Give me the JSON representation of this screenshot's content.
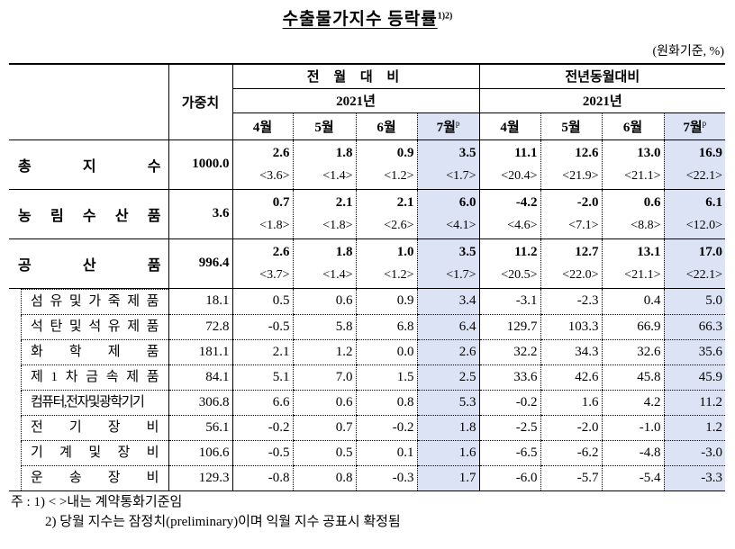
{
  "title": {
    "text": "수출물가지수 등락률",
    "superscript": "1)2)"
  },
  "unit": "(원화기준, %)",
  "header": {
    "weight_label": "가중치",
    "group1": {
      "label": "전 월 대 비",
      "year": "2021년",
      "months": [
        "4월",
        "5월",
        "6월",
        "7월"
      ]
    },
    "group2": {
      "label": "전년동월대비",
      "year": "2021년",
      "months": [
        "4월",
        "5월",
        "6월",
        "7월"
      ]
    },
    "prelim_mark": "p"
  },
  "highlight_color": "#dbe3f5",
  "main_rows": [
    {
      "label_chars": [
        "총",
        "지",
        "수"
      ],
      "weight": "1000.0",
      "mom": [
        "2.6",
        "1.8",
        "0.9",
        "3.5"
      ],
      "mom_contract": [
        "<3.6>",
        "<1.4>",
        "<1.2>",
        "<1.7>"
      ],
      "yoy": [
        "11.1",
        "12.6",
        "13.0",
        "16.9"
      ],
      "yoy_contract": [
        "<20.4>",
        "<21.9>",
        "<21.1>",
        "<22.1>"
      ]
    },
    {
      "label_chars": [
        "농",
        "림",
        "수",
        "산",
        "품"
      ],
      "weight": "3.6",
      "mom": [
        "0.7",
        "2.1",
        "2.1",
        "6.0"
      ],
      "mom_contract": [
        "<1.8>",
        "<1.8>",
        "<2.6>",
        "<4.1>"
      ],
      "yoy": [
        "-4.2",
        "-2.0",
        "0.6",
        "6.1"
      ],
      "yoy_contract": [
        "<4.6>",
        "<7.1>",
        "<8.8>",
        "<12.0>"
      ]
    },
    {
      "label_chars": [
        "공",
        "산",
        "품"
      ],
      "weight": "996.4",
      "mom": [
        "2.6",
        "1.8",
        "1.0",
        "3.5"
      ],
      "mom_contract": [
        "<3.7>",
        "<1.4>",
        "<1.2>",
        "<1.7>"
      ],
      "yoy": [
        "11.2",
        "12.7",
        "13.1",
        "17.0"
      ],
      "yoy_contract": [
        "<20.5>",
        "<22.0>",
        "<21.1>",
        "<22.1>"
      ]
    }
  ],
  "sub_rows": [
    {
      "label_chars": [
        "섬",
        "유",
        "및",
        "가",
        "죽",
        "제",
        "품"
      ],
      "weight": "18.1",
      "mom": [
        "0.5",
        "0.6",
        "0.9",
        "3.4"
      ],
      "yoy": [
        "-3.1",
        "-2.3",
        "0.4",
        "5.0"
      ]
    },
    {
      "label_chars": [
        "석",
        "탄",
        "및",
        "석",
        "유",
        "제",
        "품"
      ],
      "weight": "72.8",
      "mom": [
        "-0.5",
        "5.8",
        "6.8",
        "6.4"
      ],
      "yoy": [
        "129.7",
        "103.3",
        "66.9",
        "66.3"
      ]
    },
    {
      "label_chars": [
        "화",
        "학",
        "제",
        "품"
      ],
      "weight": "181.1",
      "mom": [
        "2.1",
        "1.2",
        "0.0",
        "2.6"
      ],
      "yoy": [
        "32.2",
        "34.3",
        "32.6",
        "35.6"
      ]
    },
    {
      "label_chars": [
        "제",
        "1",
        "차",
        "금",
        "속",
        "제",
        "품"
      ],
      "weight": "84.1",
      "mom": [
        "5.1",
        "7.0",
        "1.5",
        "2.5"
      ],
      "yoy": [
        "33.6",
        "42.6",
        "45.8",
        "45.9"
      ]
    },
    {
      "label_chars": [
        "컴퓨터,전자및광학기기"
      ],
      "weight": "306.8",
      "mom": [
        "6.6",
        "0.6",
        "0.8",
        "5.3"
      ],
      "yoy": [
        "-0.2",
        "1.6",
        "4.2",
        "11.2"
      ]
    },
    {
      "label_chars": [
        "전",
        "기",
        "장",
        "비"
      ],
      "weight": "56.1",
      "mom": [
        "-0.2",
        "0.7",
        "-0.2",
        "1.8"
      ],
      "yoy": [
        "-2.5",
        "-2.0",
        "-1.0",
        "1.2"
      ]
    },
    {
      "label_chars": [
        "기",
        "계",
        "및",
        "장",
        "비"
      ],
      "weight": "106.6",
      "mom": [
        "-0.5",
        "0.5",
        "0.1",
        "1.6"
      ],
      "yoy": [
        "-6.5",
        "-6.2",
        "-4.8",
        "-3.0"
      ]
    },
    {
      "label_chars": [
        "운",
        "송",
        "장",
        "비"
      ],
      "weight": "129.3",
      "mom": [
        "-0.8",
        "0.8",
        "-0.3",
        "1.7"
      ],
      "yoy": [
        "-6.0",
        "-5.7",
        "-5.4",
        "-3.3"
      ]
    }
  ],
  "notes": {
    "prefix": "주 :",
    "note1": "1) < >내는 계약통화기준임",
    "note2": "2) 당월 지수는 잠정치(preliminary)이며 익월 지수 공표시 확정됨"
  }
}
